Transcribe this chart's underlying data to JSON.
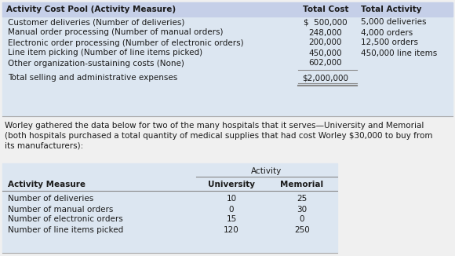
{
  "bg_color": "#f0f0f0",
  "table1_bg": "#dce6f1",
  "table1_header_bg": "#c5cfe8",
  "table1": {
    "header": [
      "Activity Cost Pool (Activity Measure)",
      "Total Cost",
      "Total Activity"
    ],
    "rows": [
      [
        "Customer deliveries (Number of deliveries)",
        "$  500,000",
        "5,000 deliveries"
      ],
      [
        "Manual order processing (Number of manual orders)",
        "248,000",
        "4,000 orders"
      ],
      [
        "Electronic order processing (Number of electronic orders)",
        "200,000",
        "12,500 orders"
      ],
      [
        "Line item picking (Number of line items picked)",
        "450,000",
        "450,000 line items"
      ],
      [
        "Other organization-sustaining costs (None)",
        "602,000",
        ""
      ]
    ],
    "total_label": "Total selling and administrative expenses",
    "total_cost": "$2,000,000"
  },
  "paragraph_lines": [
    "Worley gathered the data below for two of the many hospitals that it serves—University and Memorial",
    "(both hospitals purchased a total quantity of medical supplies that had cost Worley $30,000 to buy from",
    "its manufacturers):"
  ],
  "table2_bg": "#dce6f1",
  "table2": {
    "group_header": "Activity",
    "col_headers": [
      "Activity Measure",
      "University",
      "Memorial"
    ],
    "rows": [
      [
        "Number of deliveries",
        "10",
        "25"
      ],
      [
        "Number of manual orders",
        "0",
        "30"
      ],
      [
        "Number of electronic orders",
        "15",
        "0"
      ],
      [
        "Number of line items picked",
        "120",
        "250"
      ]
    ]
  },
  "fs": 7.5,
  "fs_bold": 7.5,
  "text_color": "#1a1a1a",
  "line_color": "#888888"
}
